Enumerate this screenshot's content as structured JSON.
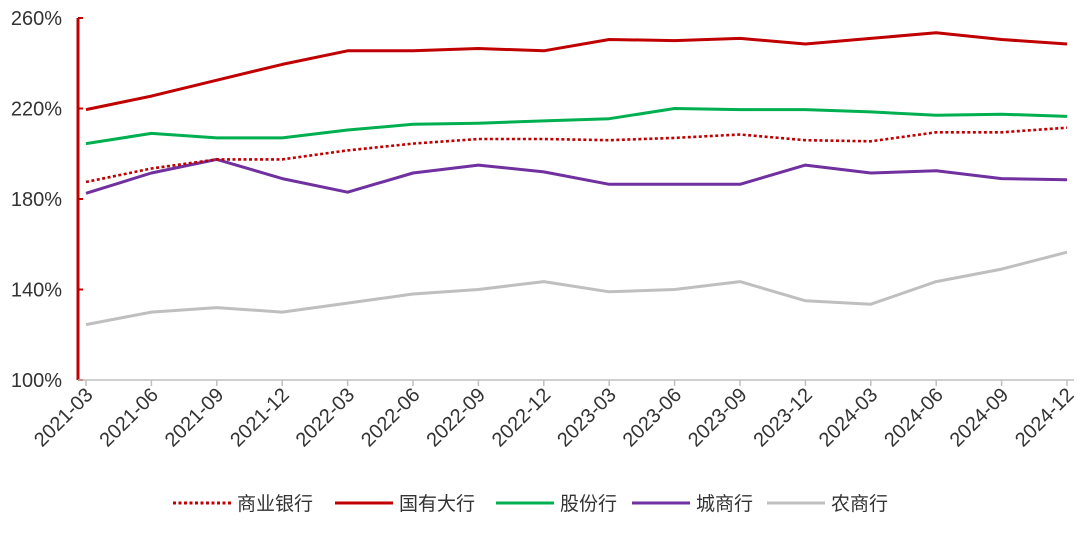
{
  "chart_data": {
    "type": "line",
    "title": "",
    "xlabel": "",
    "ylabel": "",
    "ylim": [
      100,
      260
    ],
    "yticks": [
      "100%",
      "140%",
      "180%",
      "220%",
      "260%"
    ],
    "ytick_values": [
      100,
      140,
      180,
      220,
      260
    ],
    "categories": [
      "2021-03",
      "2021-06",
      "2021-09",
      "2021-12",
      "2022-03",
      "2022-06",
      "2022-09",
      "2022-12",
      "2023-03",
      "2023-06",
      "2023-09",
      "2023-12",
      "2024-03",
      "2024-06",
      "2024-09",
      "2024-12"
    ],
    "grid": false,
    "legend_position": "bottom",
    "series": [
      {
        "name": "商业银行",
        "color": "#c00000",
        "style": "dotted",
        "values": [
          187.5,
          193.5,
          197.5,
          197.5,
          201.5,
          204.5,
          206.5,
          206.5,
          206,
          207,
          208.5,
          206,
          205.5,
          209.5,
          209.5,
          211.5
        ]
      },
      {
        "name": "国有大行",
        "color": "#c00000",
        "style": "solid",
        "values": [
          219.5,
          225.5,
          232.5,
          239.5,
          245.5,
          245.5,
          246.5,
          245.5,
          250.5,
          250,
          251,
          248.5,
          251,
          253.5,
          250.5,
          248.5
        ]
      },
      {
        "name": "股份行",
        "color": "#00b050",
        "style": "solid",
        "values": [
          204.5,
          209,
          207,
          207,
          210.5,
          213,
          213.5,
          214.5,
          215.5,
          220,
          219.5,
          219.5,
          218.5,
          217,
          217.5,
          216.5
        ]
      },
      {
        "name": "城商行",
        "color": "#7030a0",
        "style": "solid",
        "values": [
          182.5,
          191.5,
          197.5,
          189,
          183,
          191.5,
          195,
          192,
          186.5,
          186.5,
          186.5,
          195,
          191.5,
          192.5,
          189,
          188.5
        ]
      },
      {
        "name": "农商行",
        "color": "#bfbfbf",
        "style": "solid",
        "values": [
          124.5,
          130,
          132,
          130,
          134,
          138,
          140,
          143.5,
          139,
          140,
          143.5,
          135,
          133.5,
          143.5,
          149,
          156.5
        ]
      }
    ]
  }
}
